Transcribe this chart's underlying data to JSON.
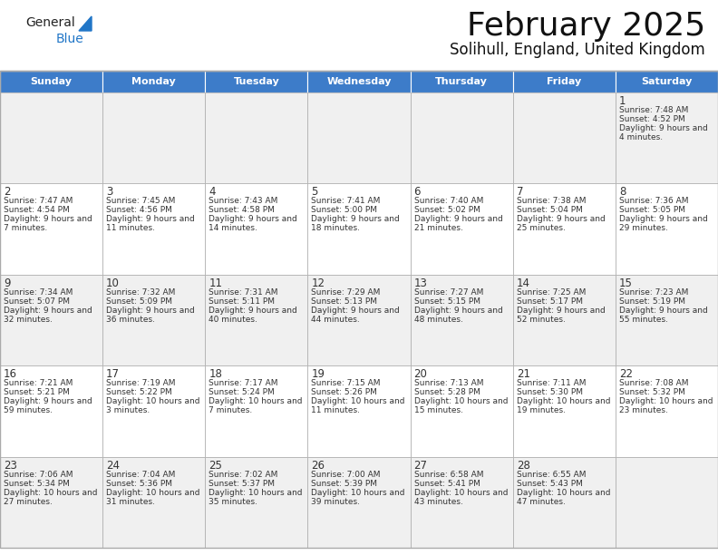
{
  "title": "February 2025",
  "subtitle": "Solihull, England, United Kingdom",
  "header_color": "#3D7CC9",
  "header_text_color": "#FFFFFF",
  "day_headers": [
    "Sunday",
    "Monday",
    "Tuesday",
    "Wednesday",
    "Thursday",
    "Friday",
    "Saturday"
  ],
  "background_color": "#FFFFFF",
  "cell_bg_even": "#F0F0F0",
  "cell_bg_odd": "#FFFFFF",
  "border_color": "#AAAAAA",
  "text_color": "#333333",
  "title_color": "#111111",
  "logo_blue": "#2176C7",
  "logo_dark": "#222222",
  "weeks": [
    [
      null,
      null,
      null,
      null,
      null,
      null,
      {
        "day": 1,
        "sunrise": "7:48 AM",
        "sunset": "4:52 PM",
        "daylight": "9 hours and 4 minutes."
      }
    ],
    [
      {
        "day": 2,
        "sunrise": "7:47 AM",
        "sunset": "4:54 PM",
        "daylight": "9 hours and 7 minutes."
      },
      {
        "day": 3,
        "sunrise": "7:45 AM",
        "sunset": "4:56 PM",
        "daylight": "9 hours and 11 minutes."
      },
      {
        "day": 4,
        "sunrise": "7:43 AM",
        "sunset": "4:58 PM",
        "daylight": "9 hours and 14 minutes."
      },
      {
        "day": 5,
        "sunrise": "7:41 AM",
        "sunset": "5:00 PM",
        "daylight": "9 hours and 18 minutes."
      },
      {
        "day": 6,
        "sunrise": "7:40 AM",
        "sunset": "5:02 PM",
        "daylight": "9 hours and 21 minutes."
      },
      {
        "day": 7,
        "sunrise": "7:38 AM",
        "sunset": "5:04 PM",
        "daylight": "9 hours and 25 minutes."
      },
      {
        "day": 8,
        "sunrise": "7:36 AM",
        "sunset": "5:05 PM",
        "daylight": "9 hours and 29 minutes."
      }
    ],
    [
      {
        "day": 9,
        "sunrise": "7:34 AM",
        "sunset": "5:07 PM",
        "daylight": "9 hours and 32 minutes."
      },
      {
        "day": 10,
        "sunrise": "7:32 AM",
        "sunset": "5:09 PM",
        "daylight": "9 hours and 36 minutes."
      },
      {
        "day": 11,
        "sunrise": "7:31 AM",
        "sunset": "5:11 PM",
        "daylight": "9 hours and 40 minutes."
      },
      {
        "day": 12,
        "sunrise": "7:29 AM",
        "sunset": "5:13 PM",
        "daylight": "9 hours and 44 minutes."
      },
      {
        "day": 13,
        "sunrise": "7:27 AM",
        "sunset": "5:15 PM",
        "daylight": "9 hours and 48 minutes."
      },
      {
        "day": 14,
        "sunrise": "7:25 AM",
        "sunset": "5:17 PM",
        "daylight": "9 hours and 52 minutes."
      },
      {
        "day": 15,
        "sunrise": "7:23 AM",
        "sunset": "5:19 PM",
        "daylight": "9 hours and 55 minutes."
      }
    ],
    [
      {
        "day": 16,
        "sunrise": "7:21 AM",
        "sunset": "5:21 PM",
        "daylight": "9 hours and 59 minutes."
      },
      {
        "day": 17,
        "sunrise": "7:19 AM",
        "sunset": "5:22 PM",
        "daylight": "10 hours and 3 minutes."
      },
      {
        "day": 18,
        "sunrise": "7:17 AM",
        "sunset": "5:24 PM",
        "daylight": "10 hours and 7 minutes."
      },
      {
        "day": 19,
        "sunrise": "7:15 AM",
        "sunset": "5:26 PM",
        "daylight": "10 hours and 11 minutes."
      },
      {
        "day": 20,
        "sunrise": "7:13 AM",
        "sunset": "5:28 PM",
        "daylight": "10 hours and 15 minutes."
      },
      {
        "day": 21,
        "sunrise": "7:11 AM",
        "sunset": "5:30 PM",
        "daylight": "10 hours and 19 minutes."
      },
      {
        "day": 22,
        "sunrise": "7:08 AM",
        "sunset": "5:32 PM",
        "daylight": "10 hours and 23 minutes."
      }
    ],
    [
      {
        "day": 23,
        "sunrise": "7:06 AM",
        "sunset": "5:34 PM",
        "daylight": "10 hours and 27 minutes."
      },
      {
        "day": 24,
        "sunrise": "7:04 AM",
        "sunset": "5:36 PM",
        "daylight": "10 hours and 31 minutes."
      },
      {
        "day": 25,
        "sunrise": "7:02 AM",
        "sunset": "5:37 PM",
        "daylight": "10 hours and 35 minutes."
      },
      {
        "day": 26,
        "sunrise": "7:00 AM",
        "sunset": "5:39 PM",
        "daylight": "10 hours and 39 minutes."
      },
      {
        "day": 27,
        "sunrise": "6:58 AM",
        "sunset": "5:41 PM",
        "daylight": "10 hours and 43 minutes."
      },
      {
        "day": 28,
        "sunrise": "6:55 AM",
        "sunset": "5:43 PM",
        "daylight": "10 hours and 47 minutes."
      },
      null
    ]
  ],
  "fig_width": 7.92,
  "fig_height": 6.12,
  "dpi": 100
}
